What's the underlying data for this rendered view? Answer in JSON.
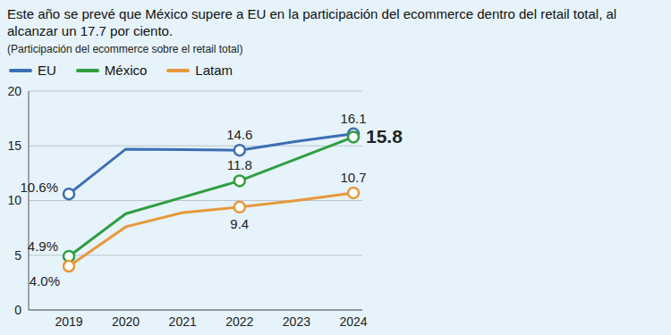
{
  "chart_data": {
    "type": "line",
    "title": "Este año se prevé que México supere a EU en la participación del ecommerce dentro del retail total, al alcanzar un 17.7 por ciento.",
    "subtitle": "(Participación del ecommerce sobre el retail total)",
    "categories": [
      "2019",
      "2020",
      "2021",
      "2022",
      "2023",
      "2024"
    ],
    "series": [
      {
        "name": "EU",
        "color": "#3b6fb3",
        "values": [
          10.6,
          14.7,
          14.65,
          14.6,
          15.4,
          16.1
        ],
        "value_labels": [
          "10.6%",
          null,
          null,
          "14.6",
          null,
          "16.1"
        ]
      },
      {
        "name": "México",
        "color": "#2f9e40",
        "values": [
          4.9,
          8.8,
          10.3,
          11.8,
          13.8,
          15.8
        ],
        "value_labels": [
          "4.9%",
          null,
          null,
          "11.8",
          null,
          "15.8"
        ]
      },
      {
        "name": "Latam",
        "color": "#e8983c",
        "values": [
          4.0,
          7.6,
          8.9,
          9.4,
          10.0,
          10.7
        ],
        "value_labels": [
          "4.0%",
          null,
          null,
          "9.4",
          null,
          "10.7"
        ]
      }
    ],
    "ylim": [
      0,
      20
    ],
    "yticks": [
      0,
      5,
      10,
      15,
      20
    ],
    "grid": true,
    "legend": "top",
    "data_labels": true,
    "marker": "circle"
  }
}
